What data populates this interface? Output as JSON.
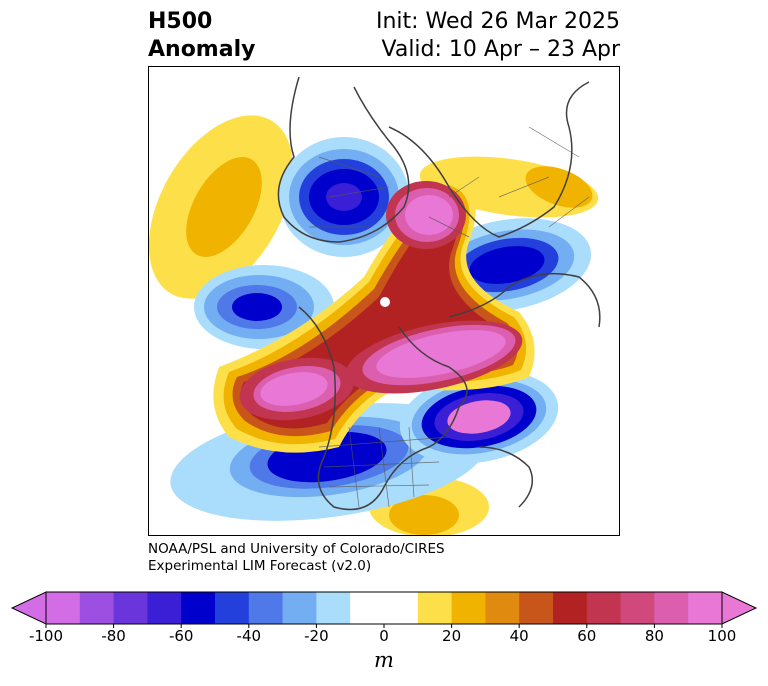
{
  "title": {
    "left_line1": "H500",
    "left_line2": "Anomaly",
    "right_line1": "Init: Wed 26 Mar 2025",
    "right_line2": "Valid: 10 Apr – 23 Apr"
  },
  "credit": {
    "line1": "NOAA/PSL and University of Colorado/CIRES",
    "line2": "Experimental LIM Forecast (v2.0)"
  },
  "colorbar": {
    "unit": "m",
    "ticks": [
      "-100",
      "-80",
      "-60",
      "-40",
      "-20",
      "0",
      "20",
      "40",
      "60",
      "80",
      "100"
    ],
    "colors": [
      "#d36de6",
      "#9c4fe0",
      "#6a36dc",
      "#3a1fd6",
      "#0000cc",
      "#2340dd",
      "#4f78e8",
      "#74aef2",
      "#aadcfb",
      "#ffffff",
      "#ffffff",
      "#fde049",
      "#f0b400",
      "#e08b10",
      "#c85519",
      "#b22222",
      "#c23550",
      "#d0487c",
      "#db5fae",
      "#e877d6"
    ],
    "under_color": "#d36de6",
    "over_color": "#e877d6"
  },
  "map": {
    "projection": "north-polar-stereographic"
  }
}
